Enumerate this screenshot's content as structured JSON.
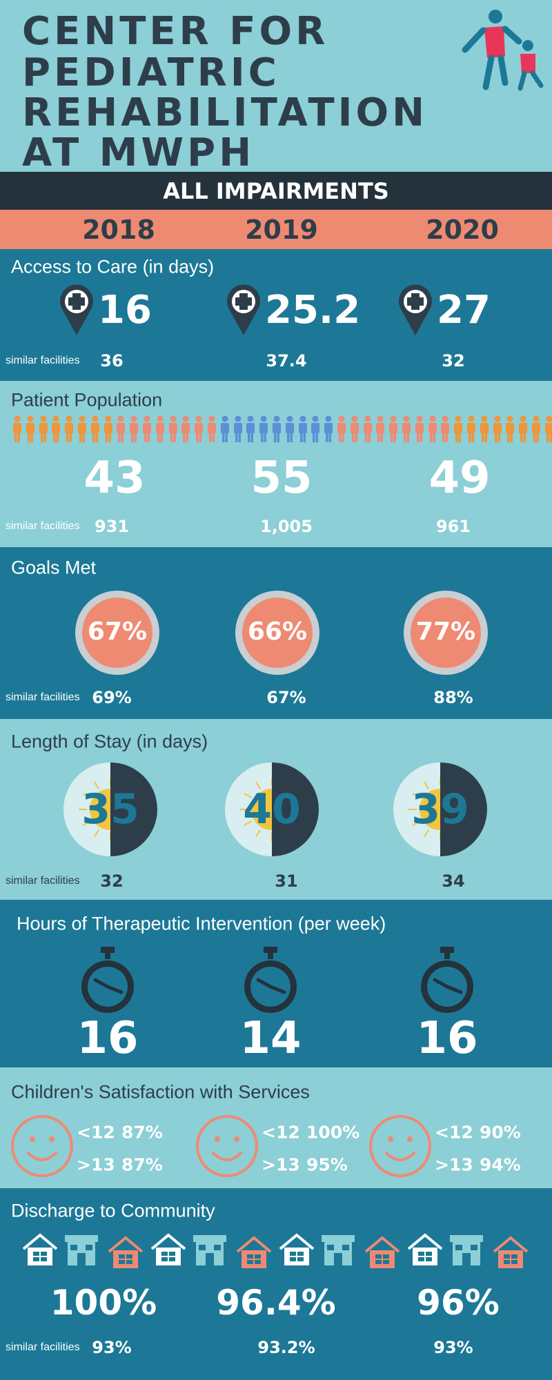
{
  "header": {
    "title_lines": [
      "CENTER FOR",
      "PEDIATRIC",
      "REHABILITATION",
      "AT MWPH"
    ]
  },
  "banner": "ALL IMPAIRMENTS",
  "years": [
    "2018",
    "2019",
    "2020"
  ],
  "sections": [
    {
      "title": "Access to Care (in days)",
      "values": [
        "16",
        "25.2",
        "27"
      ],
      "similar_label": "similar facilities",
      "similar": [
        "36",
        "37.4",
        "32"
      ]
    },
    {
      "title": "Patient Population",
      "values": [
        "43",
        "55",
        "49"
      ],
      "similar_label": "similar facilities",
      "similar": [
        "931",
        "1,005",
        "961"
      ]
    },
    {
      "title": "Goals Met",
      "values": [
        "67%",
        "66%",
        "77%"
      ],
      "similar_label": "similar facilities",
      "similar": [
        "69%",
        "67%",
        "88%"
      ]
    },
    {
      "title": "Length of Stay (in days)",
      "values": [
        "35",
        "40",
        "39"
      ],
      "similar_label": "similar facilities",
      "similar": [
        "32",
        "31",
        "34"
      ]
    },
    {
      "title": "Hours of Therapeutic Intervention (per week)",
      "values": [
        "16",
        "14",
        "16"
      ]
    },
    {
      "title": "Children's Satisfaction with Services",
      "rows": [
        [
          {
            "age": "<12",
            "value": "87%"
          },
          {
            "age": ">13",
            "value": "87%"
          }
        ],
        [
          {
            "age": "<12",
            "value": "100%"
          },
          {
            "age": ">13",
            "value": "95%"
          }
        ],
        [
          {
            "age": "<12",
            "value": "90%"
          },
          {
            "age": ">13",
            "value": "94%"
          }
        ]
      ]
    },
    {
      "title": "Discharge to Community",
      "values": [
        "100%",
        "96.4%",
        "96%"
      ],
      "similar_label": "similar facilities",
      "similar": [
        "93%",
        "93.2%",
        "93%"
      ]
    }
  ]
}
